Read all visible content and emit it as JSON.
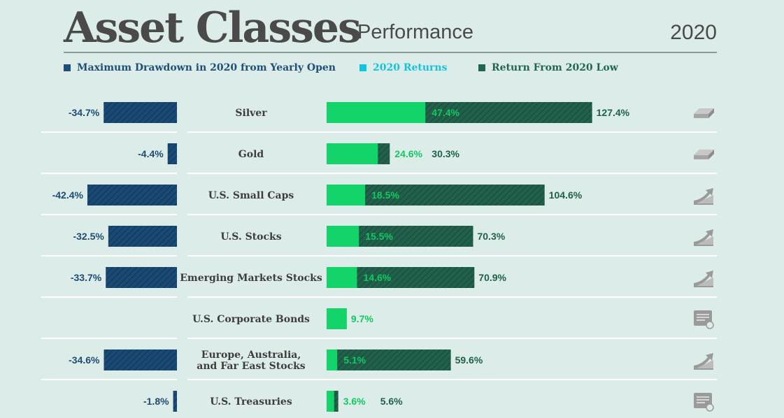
{
  "header": {
    "title": "Asset Classes",
    "subtitle": "Performance",
    "year": "2020"
  },
  "legend": [
    {
      "label": "Maximum Drawdown in 2020 from Yearly Open",
      "color": "#1f4e79"
    },
    {
      "label": "2020 Returns",
      "color": "#13c3e0"
    },
    {
      "label": "Return From 2020 Low",
      "color": "#23664f"
    }
  ],
  "colors": {
    "drawdown": "#1a4a73",
    "returns": "#12d468",
    "from_low": "#21604a",
    "drawdown_text": "#1e4b72",
    "returns_text": "#12c862",
    "from_low_text": "#1f6049",
    "icon": "#9a9a9a"
  },
  "chart_data": {
    "type": "bar",
    "title": "Asset Classes Performance 2020",
    "categories": [
      "Silver",
      "Gold",
      "U.S. Small Caps",
      "U.S. Stocks",
      "Emerging Markets Stocks",
      "U.S. Corporate Bonds",
      "Europe, Australia, and Far East Stocks",
      "U.S. Treasuries"
    ],
    "category_lines": [
      [
        "Silver"
      ],
      [
        "Gold"
      ],
      [
        "U.S. Small Caps"
      ],
      [
        "U.S. Stocks"
      ],
      [
        "Emerging Markets Stocks"
      ],
      [
        "U.S. Corporate Bonds"
      ],
      [
        "Europe, Australia,",
        "and Far East Stocks"
      ],
      [
        "U.S. Treasuries"
      ]
    ],
    "series": [
      {
        "name": "Maximum Drawdown in 2020 from Yearly Open",
        "values": [
          -34.7,
          -4.4,
          -42.4,
          -32.5,
          -33.7,
          null,
          -34.6,
          -1.8
        ],
        "labels": [
          "-34.7%",
          "-4.4%",
          "-42.4%",
          "-32.5%",
          "-33.7%",
          "",
          "-34.6%",
          "-1.8%"
        ]
      },
      {
        "name": "2020 Returns",
        "values": [
          47.4,
          24.6,
          18.5,
          15.5,
          14.6,
          9.7,
          5.1,
          3.6
        ],
        "labels": [
          "47.4%",
          "24.6%",
          "18.5%",
          "15.5%",
          "14.6%",
          "9.7%",
          "5.1%",
          "3.6%"
        ]
      },
      {
        "name": "Return From 2020 Low",
        "values": [
          127.4,
          30.3,
          104.6,
          70.3,
          70.9,
          null,
          59.6,
          5.6
        ],
        "labels": [
          "127.4%",
          "30.3%",
          "104.6%",
          "70.3%",
          "70.9%",
          "",
          "59.6%",
          "5.6%"
        ]
      }
    ],
    "icons": [
      "silver-bar-icon",
      "gold-bar-icon",
      "rising-arrow-icon",
      "rising-arrow-icon",
      "rising-arrow-icon",
      "bond-certificate-icon",
      "rising-arrow-icon",
      "bond-certificate-icon"
    ]
  }
}
